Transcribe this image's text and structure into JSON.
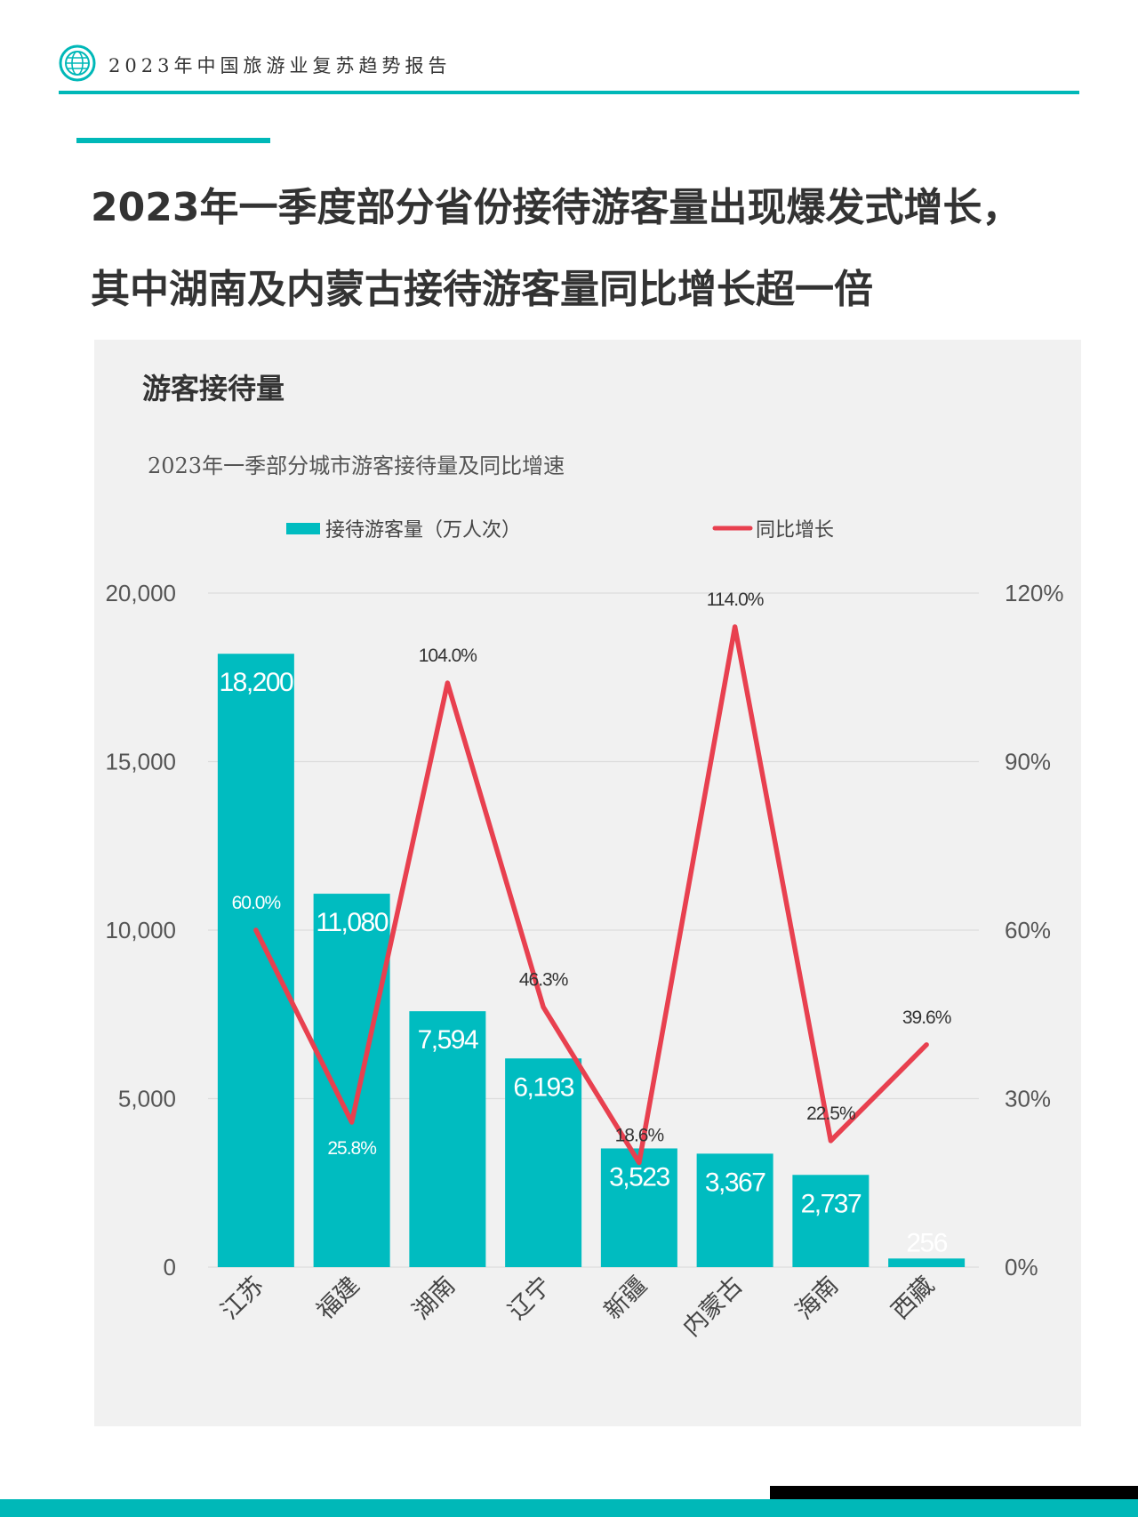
{
  "header": {
    "title": "2023年中国旅游业复苏趋势报告"
  },
  "headline": {
    "line1": "2023年一季度部分省份接待游客量出现爆发式增长，",
    "line2": "其中湖南及内蒙古接待游客量同比增长超一倍"
  },
  "panel": {
    "title": "游客接待量"
  },
  "colors": {
    "accent": "#00b8b8",
    "bar": "#00bcc0",
    "line": "#e8404f"
  },
  "chart_data": {
    "type": "bar",
    "title": "2023年一季部分城市游客接待量及同比增速",
    "categories": [
      "江苏",
      "福建",
      "湖南",
      "辽宁",
      "新疆",
      "内蒙古",
      "海南",
      "西藏"
    ],
    "series": [
      {
        "name": "接待游客量（万人次）",
        "type": "bar",
        "axis": "left",
        "values": [
          18200,
          11080,
          7594,
          6193,
          3523,
          3367,
          2737,
          256
        ],
        "labels": [
          "18,200",
          "11,080",
          "7,594",
          "6,193",
          "3,523",
          "3,367",
          "2,737",
          "256"
        ]
      },
      {
        "name": "同比增长",
        "type": "line",
        "axis": "right",
        "values": [
          60.0,
          25.8,
          104.0,
          46.3,
          18.6,
          114.0,
          22.5,
          39.6
        ],
        "labels": [
          "60.0%",
          "25.8%",
          "104.0%",
          "46.3%",
          "18.6%",
          "114.0%",
          "22.5%",
          "39.6%"
        ]
      }
    ],
    "y_left": {
      "min": 0,
      "max": 20000,
      "ticks": [
        "0",
        "5,000",
        "10,000",
        "15,000",
        "20,000"
      ]
    },
    "y_right": {
      "min": 0,
      "max": 120,
      "ticks": [
        "0%",
        "30%",
        "60%",
        "90%",
        "120%"
      ]
    },
    "grid": true,
    "legend_position": "top"
  }
}
